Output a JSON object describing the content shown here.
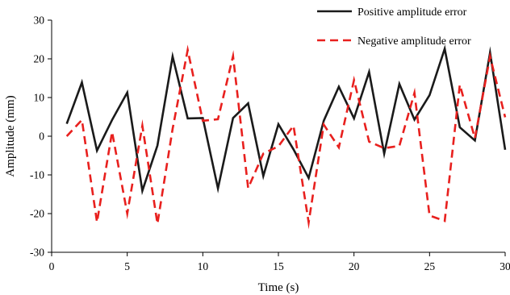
{
  "chart_data": {
    "type": "line",
    "title": "",
    "xlabel": "Time (s)",
    "ylabel": "Amplitude (mm)",
    "xlim": [
      0,
      30
    ],
    "ylim": [
      -30,
      30
    ],
    "xticks": [
      0,
      5,
      10,
      15,
      20,
      25,
      30
    ],
    "yticks": [
      -30,
      -20,
      -10,
      0,
      10,
      20,
      30
    ],
    "grid": false,
    "legend_position": "top-right",
    "series": [
      {
        "name": "Positive amplitude error",
        "color": "#1a1a1a",
        "dash": "solid",
        "x": [
          1,
          2,
          3,
          4,
          5,
          6,
          7,
          8,
          9,
          10,
          11,
          12,
          13,
          14,
          15,
          16,
          17,
          18,
          19,
          20,
          21,
          22,
          23,
          24,
          25,
          26,
          27,
          28,
          29,
          30
        ],
        "y": [
          3.2,
          13.9,
          -3.7,
          4.2,
          11.3,
          -14.1,
          -2.4,
          20.6,
          4.6,
          4.7,
          -13.5,
          4.7,
          8.5,
          -10.3,
          3.1,
          -3.4,
          -10.8,
          4.0,
          12.8,
          4.6,
          16.6,
          -4.5,
          13.5,
          4.3,
          10.6,
          22.6,
          2.3,
          -1.1,
          21.6,
          -3.5
        ]
      },
      {
        "name": "Negative amplitude error",
        "color": "#e8201e",
        "dash": "dashed",
        "x": [
          1,
          2,
          3,
          4,
          5,
          6,
          7,
          8,
          9,
          10,
          11,
          12,
          13,
          14,
          15,
          16,
          17,
          18,
          19,
          20,
          21,
          22,
          23,
          24,
          25,
          26,
          27,
          28,
          29,
          30
        ],
        "y": [
          0.0,
          4.2,
          -22.2,
          1.1,
          -20.0,
          2.7,
          -22.6,
          1.9,
          22.3,
          4.0,
          4.4,
          20.7,
          -13.4,
          -4.5,
          -2.6,
          2.7,
          -22.3,
          3.0,
          -2.9,
          14.5,
          -1.4,
          -3.1,
          -2.5,
          11.2,
          -20.5,
          -21.9,
          13.3,
          -0.5,
          20.6,
          4.9
        ]
      }
    ]
  }
}
